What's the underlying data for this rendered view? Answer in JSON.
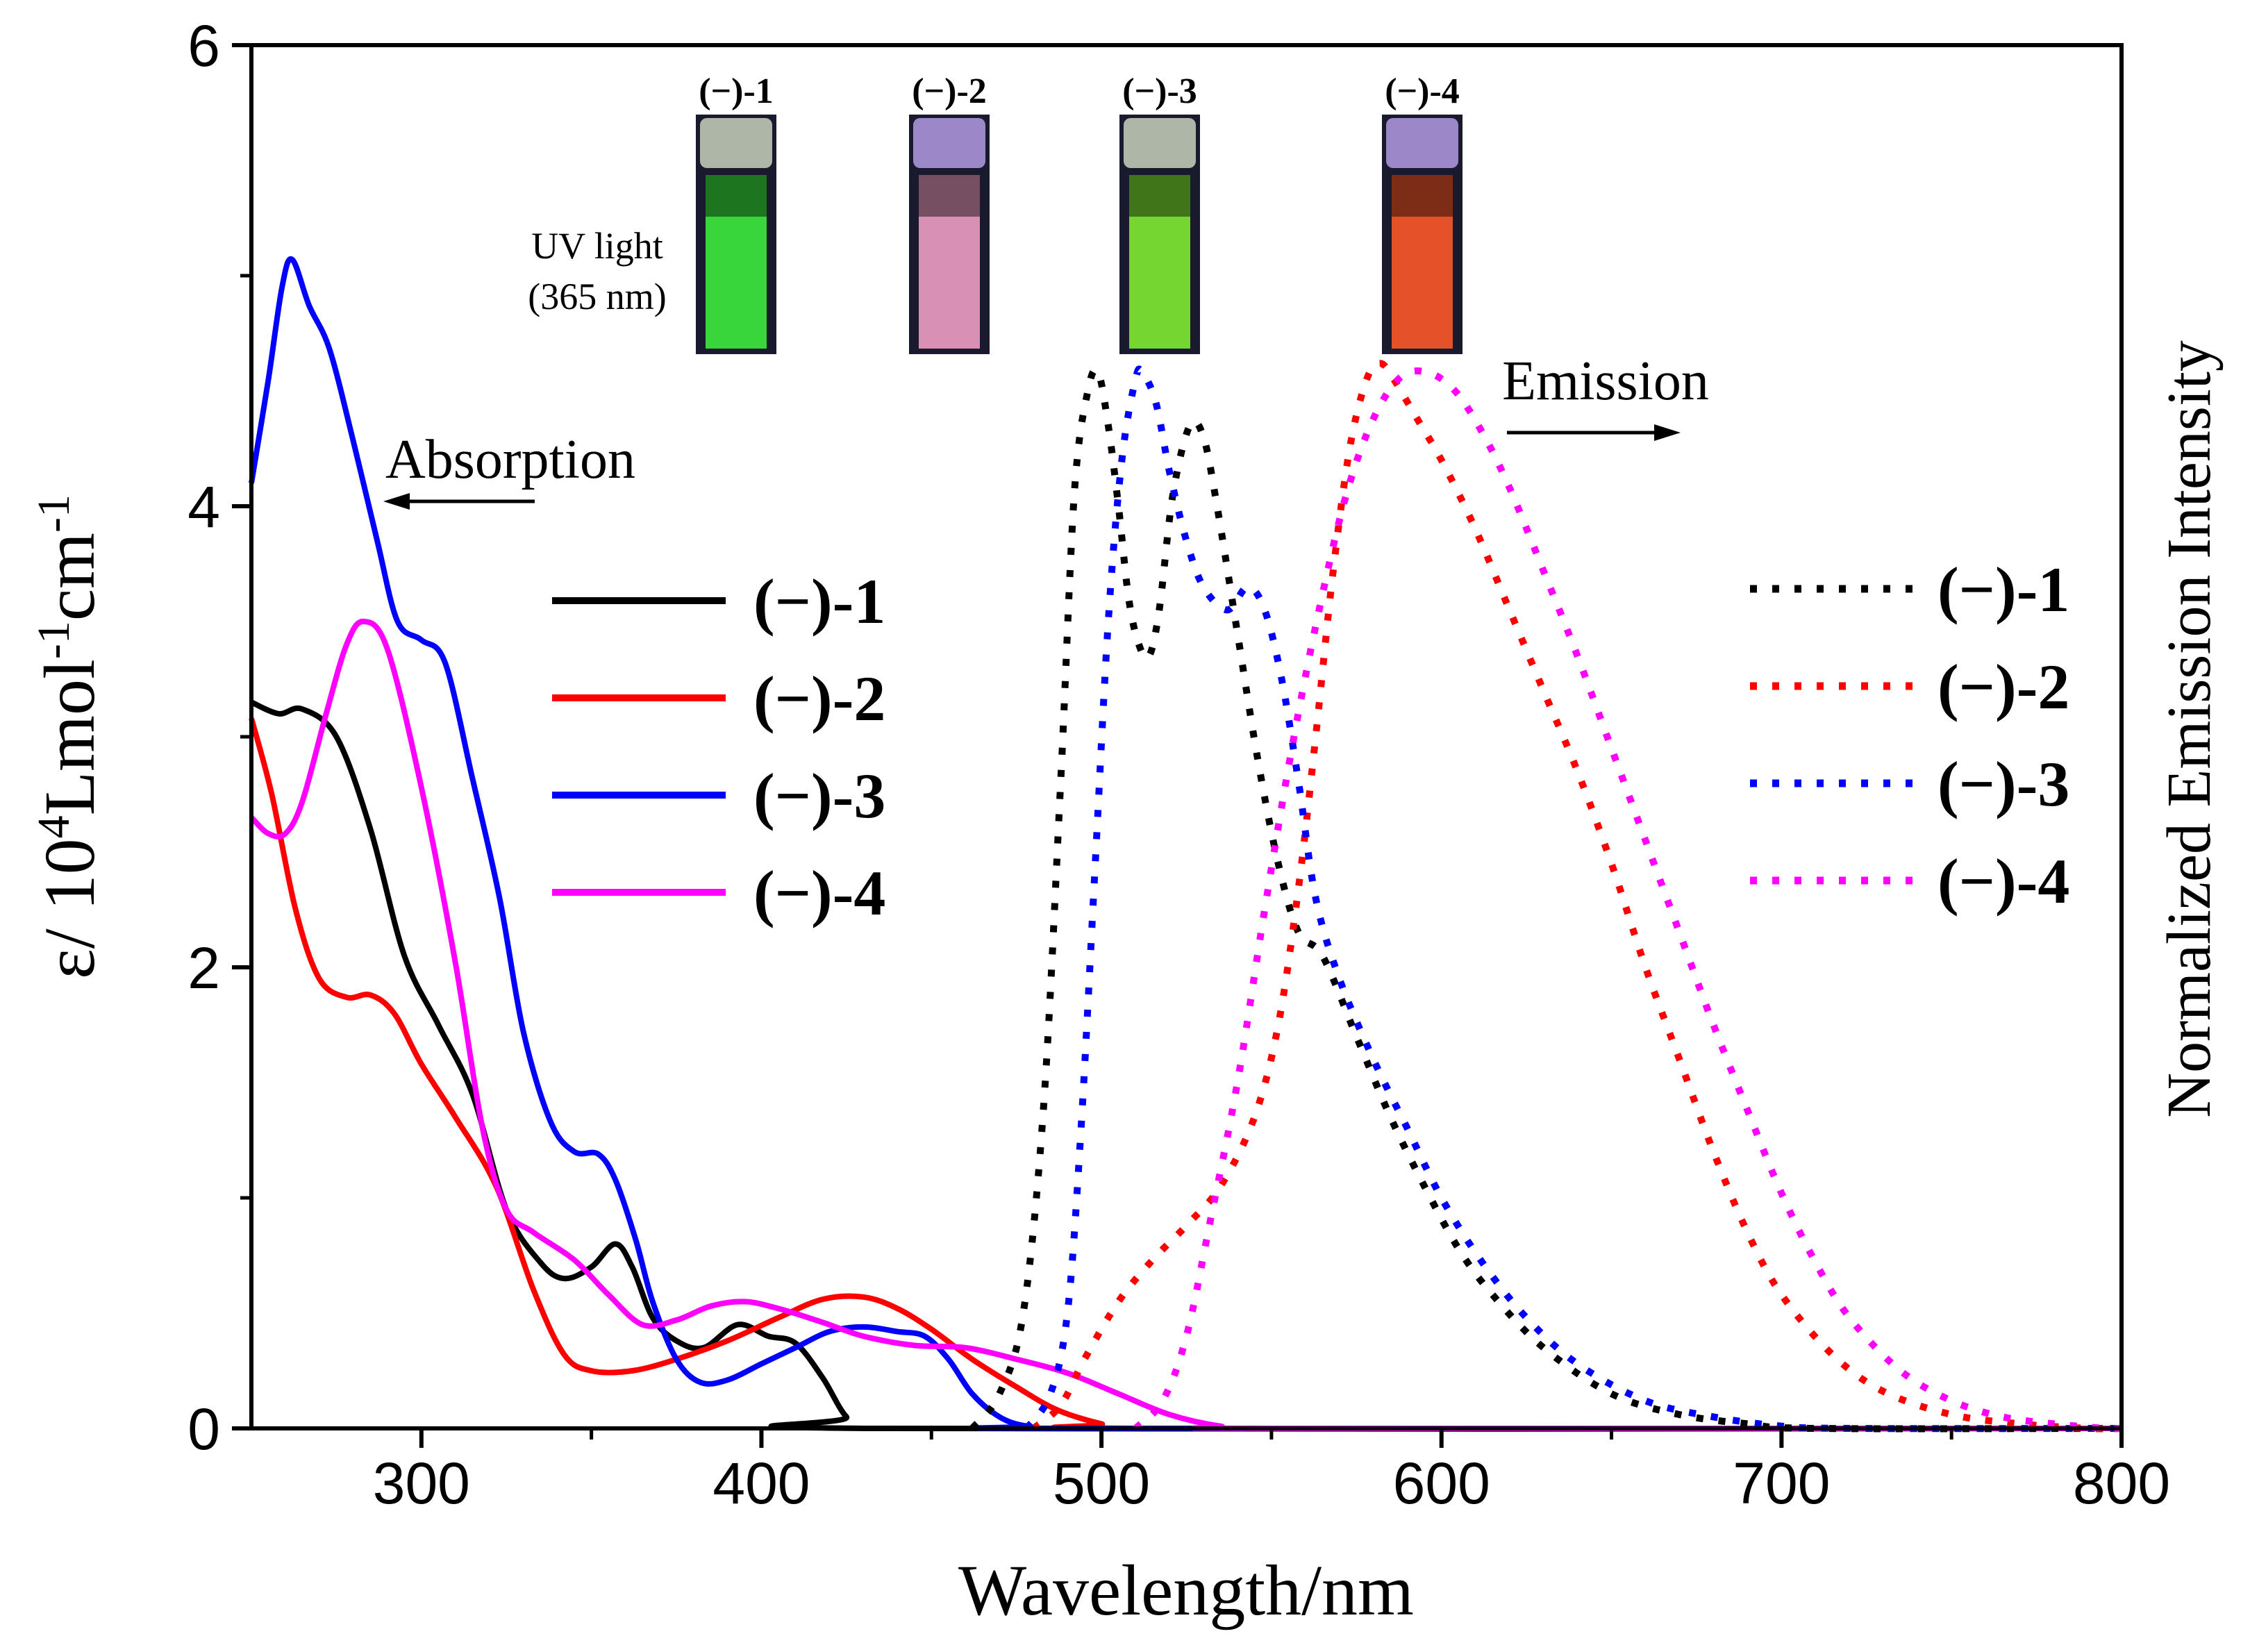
{
  "chart_data": {
    "type": "line",
    "xlabel": "Wavelength/nm",
    "ylabel_left": {
      "prefix": "ε/ 10",
      "sup1": "4",
      "mid": "Lmol",
      "sup2": "-1",
      "mid2": "cm",
      "sup3": "-1"
    },
    "ylabel_right": "Normalized Emission Intensity",
    "xlim": [
      250,
      800
    ],
    "ylim": [
      0,
      6
    ],
    "x_ticks": [
      300,
      400,
      500,
      600,
      700,
      800
    ],
    "x_tick_labels": [
      "300",
      "400",
      "500",
      "600",
      "700",
      "800"
    ],
    "y_ticks": [
      0,
      2,
      4,
      6
    ],
    "y_tick_labels": [
      "0",
      "2",
      "4",
      "6"
    ],
    "annotations": {
      "absorption": "Absorption",
      "emission": "Emission",
      "uv_line1": "UV light",
      "uv_line2": "(365 nm)"
    },
    "vials": [
      {
        "label": "(−)-1",
        "color": "#3cf03c"
      },
      {
        "label": "(−)-2",
        "color": "#f4a0c8"
      },
      {
        "label": "(−)-3",
        "color": "#82f032"
      },
      {
        "label": "(−)-4",
        "color": "#ff5a28"
      }
    ],
    "legend_absorption": [
      "(−)-1",
      "(−)-2",
      "(−)-3",
      "(−)-4"
    ],
    "legend_emission": [
      "(−)-1",
      "(−)-2",
      "(−)-3",
      "(−)-4"
    ],
    "absorption_series": [
      {
        "name": "(−)-1",
        "color": "#000000",
        "points": [
          [
            250,
            3.15
          ],
          [
            258,
            3.1
          ],
          [
            265,
            3.12
          ],
          [
            275,
            3.0
          ],
          [
            285,
            2.6
          ],
          [
            295,
            2.05
          ],
          [
            305,
            1.75
          ],
          [
            315,
            1.45
          ],
          [
            325,
            0.95
          ],
          [
            335,
            0.72
          ],
          [
            342,
            0.65
          ],
          [
            350,
            0.7
          ],
          [
            357,
            0.8
          ],
          [
            362,
            0.7
          ],
          [
            368,
            0.48
          ],
          [
            375,
            0.38
          ],
          [
            383,
            0.35
          ],
          [
            393,
            0.45
          ],
          [
            402,
            0.4
          ],
          [
            410,
            0.37
          ],
          [
            418,
            0.22
          ],
          [
            425,
            0.05
          ],
          [
            432,
            0.0
          ],
          [
            800,
            0.0
          ]
        ]
      },
      {
        "name": "(−)-2",
        "color": "#ff0000",
        "points": [
          [
            250,
            3.08
          ],
          [
            256,
            2.75
          ],
          [
            263,
            2.25
          ],
          [
            270,
            1.95
          ],
          [
            278,
            1.87
          ],
          [
            285,
            1.88
          ],
          [
            292,
            1.8
          ],
          [
            300,
            1.58
          ],
          [
            310,
            1.35
          ],
          [
            322,
            1.05
          ],
          [
            333,
            0.6
          ],
          [
            342,
            0.32
          ],
          [
            350,
            0.25
          ],
          [
            362,
            0.25
          ],
          [
            375,
            0.3
          ],
          [
            390,
            0.38
          ],
          [
            405,
            0.48
          ],
          [
            418,
            0.56
          ],
          [
            430,
            0.57
          ],
          [
            440,
            0.52
          ],
          [
            450,
            0.43
          ],
          [
            462,
            0.3
          ],
          [
            475,
            0.18
          ],
          [
            487,
            0.08
          ],
          [
            500,
            0.02
          ],
          [
            510,
            0.0
          ],
          [
            800,
            0.0
          ]
        ]
      },
      {
        "name": "(−)-3",
        "color": "#0000ff",
        "points": [
          [
            250,
            4.1
          ],
          [
            255,
            4.55
          ],
          [
            259,
            4.95
          ],
          [
            262,
            5.07
          ],
          [
            267,
            4.87
          ],
          [
            273,
            4.68
          ],
          [
            280,
            4.28
          ],
          [
            287,
            3.85
          ],
          [
            293,
            3.5
          ],
          [
            300,
            3.42
          ],
          [
            307,
            3.32
          ],
          [
            315,
            2.82
          ],
          [
            323,
            2.3
          ],
          [
            330,
            1.72
          ],
          [
            338,
            1.33
          ],
          [
            345,
            1.2
          ],
          [
            352,
            1.19
          ],
          [
            357,
            1.08
          ],
          [
            363,
            0.82
          ],
          [
            368,
            0.55
          ],
          [
            375,
            0.3
          ],
          [
            382,
            0.2
          ],
          [
            390,
            0.21
          ],
          [
            400,
            0.28
          ],
          [
            410,
            0.35
          ],
          [
            420,
            0.42
          ],
          [
            430,
            0.44
          ],
          [
            440,
            0.42
          ],
          [
            448,
            0.4
          ],
          [
            455,
            0.3
          ],
          [
            462,
            0.15
          ],
          [
            470,
            0.05
          ],
          [
            478,
            0.01
          ],
          [
            490,
            0.0
          ],
          [
            800,
            0.0
          ]
        ]
      },
      {
        "name": "(−)-4",
        "color": "#ff00ff",
        "points": [
          [
            250,
            2.65
          ],
          [
            255,
            2.58
          ],
          [
            260,
            2.58
          ],
          [
            265,
            2.72
          ],
          [
            272,
            3.1
          ],
          [
            278,
            3.4
          ],
          [
            283,
            3.5
          ],
          [
            290,
            3.38
          ],
          [
            300,
            2.78
          ],
          [
            310,
            2.02
          ],
          [
            318,
            1.3
          ],
          [
            325,
            0.95
          ],
          [
            333,
            0.85
          ],
          [
            345,
            0.73
          ],
          [
            355,
            0.58
          ],
          [
            365,
            0.45
          ],
          [
            375,
            0.47
          ],
          [
            385,
            0.53
          ],
          [
            395,
            0.55
          ],
          [
            405,
            0.52
          ],
          [
            418,
            0.46
          ],
          [
            430,
            0.4
          ],
          [
            445,
            0.36
          ],
          [
            460,
            0.35
          ],
          [
            475,
            0.3
          ],
          [
            490,
            0.24
          ],
          [
            505,
            0.15
          ],
          [
            520,
            0.06
          ],
          [
            535,
            0.01
          ],
          [
            550,
            0.0
          ],
          [
            800,
            0.0
          ]
        ]
      }
    ],
    "emission_series": [
      {
        "name": "(−)-1",
        "color": "#000000",
        "points": [
          [
            462,
            0.0
          ],
          [
            470,
            0.15
          ],
          [
            477,
            0.5
          ],
          [
            483,
            1.4
          ],
          [
            488,
            2.8
          ],
          [
            492,
            4.05
          ],
          [
            496,
            4.5
          ],
          [
            499,
            4.58
          ],
          [
            502,
            4.35
          ],
          [
            505,
            4.0
          ],
          [
            508,
            3.6
          ],
          [
            511,
            3.4
          ],
          [
            514,
            3.35
          ],
          [
            517,
            3.55
          ],
          [
            521,
            4.05
          ],
          [
            526,
            4.35
          ],
          [
            530,
            4.3
          ],
          [
            534,
            4.0
          ],
          [
            540,
            3.45
          ],
          [
            546,
            2.9
          ],
          [
            552,
            2.45
          ],
          [
            558,
            2.15
          ],
          [
            565,
            2.05
          ],
          [
            575,
            1.7
          ],
          [
            585,
            1.35
          ],
          [
            595,
            1.05
          ],
          [
            605,
            0.78
          ],
          [
            615,
            0.58
          ],
          [
            630,
            0.35
          ],
          [
            650,
            0.15
          ],
          [
            670,
            0.06
          ],
          [
            690,
            0.02
          ],
          [
            710,
            0.0
          ],
          [
            800,
            0.0
          ]
        ]
      },
      {
        "name": "(−)-2",
        "color": "#ff0000",
        "points": [
          [
            480,
            0.0
          ],
          [
            488,
            0.1
          ],
          [
            495,
            0.3
          ],
          [
            505,
            0.55
          ],
          [
            515,
            0.73
          ],
          [
            525,
            0.88
          ],
          [
            535,
            1.05
          ],
          [
            545,
            1.35
          ],
          [
            552,
            1.75
          ],
          [
            558,
            2.35
          ],
          [
            563,
            3.0
          ],
          [
            568,
            3.7
          ],
          [
            573,
            4.25
          ],
          [
            578,
            4.55
          ],
          [
            582,
            4.62
          ],
          [
            586,
            4.55
          ],
          [
            592,
            4.4
          ],
          [
            600,
            4.2
          ],
          [
            610,
            3.9
          ],
          [
            620,
            3.55
          ],
          [
            630,
            3.2
          ],
          [
            640,
            2.85
          ],
          [
            650,
            2.45
          ],
          [
            660,
            2.0
          ],
          [
            670,
            1.6
          ],
          [
            680,
            1.2
          ],
          [
            690,
            0.85
          ],
          [
            700,
            0.58
          ],
          [
            715,
            0.32
          ],
          [
            730,
            0.16
          ],
          [
            750,
            0.06
          ],
          [
            770,
            0.02
          ],
          [
            790,
            0.0
          ],
          [
            800,
            0.0
          ]
        ]
      },
      {
        "name": "(−)-3",
        "color": "#0000ff",
        "points": [
          [
            478,
            0.0
          ],
          [
            485,
            0.15
          ],
          [
            490,
            0.5
          ],
          [
            494,
            1.3
          ],
          [
            498,
            2.4
          ],
          [
            502,
            3.5
          ],
          [
            506,
            4.2
          ],
          [
            510,
            4.55
          ],
          [
            512,
            4.58
          ],
          [
            516,
            4.45
          ],
          [
            520,
            4.15
          ],
          [
            525,
            3.85
          ],
          [
            530,
            3.65
          ],
          [
            537,
            3.55
          ],
          [
            543,
            3.65
          ],
          [
            548,
            3.55
          ],
          [
            553,
            3.25
          ],
          [
            558,
            2.8
          ],
          [
            563,
            2.3
          ],
          [
            570,
            1.95
          ],
          [
            580,
            1.6
          ],
          [
            590,
            1.3
          ],
          [
            600,
            1.0
          ],
          [
            612,
            0.72
          ],
          [
            625,
            0.48
          ],
          [
            640,
            0.28
          ],
          [
            660,
            0.12
          ],
          [
            680,
            0.05
          ],
          [
            700,
            0.01
          ],
          [
            720,
            0.0
          ],
          [
            800,
            0.0
          ]
        ]
      },
      {
        "name": "(−)-4",
        "color": "#ff00ff",
        "points": [
          [
            510,
            0.0
          ],
          [
            518,
            0.12
          ],
          [
            525,
            0.4
          ],
          [
            532,
            0.9
          ],
          [
            540,
            1.5
          ],
          [
            548,
            2.25
          ],
          [
            556,
            2.95
          ],
          [
            564,
            3.55
          ],
          [
            572,
            4.05
          ],
          [
            580,
            4.38
          ],
          [
            588,
            4.56
          ],
          [
            596,
            4.58
          ],
          [
            604,
            4.5
          ],
          [
            612,
            4.32
          ],
          [
            620,
            4.08
          ],
          [
            630,
            3.72
          ],
          [
            640,
            3.35
          ],
          [
            650,
            2.95
          ],
          [
            660,
            2.55
          ],
          [
            670,
            2.15
          ],
          [
            680,
            1.75
          ],
          [
            690,
            1.38
          ],
          [
            700,
            1.02
          ],
          [
            710,
            0.72
          ],
          [
            720,
            0.48
          ],
          [
            735,
            0.25
          ],
          [
            750,
            0.12
          ],
          [
            765,
            0.05
          ],
          [
            780,
            0.02
          ],
          [
            795,
            0.0
          ],
          [
            800,
            0.0
          ]
        ]
      }
    ]
  }
}
